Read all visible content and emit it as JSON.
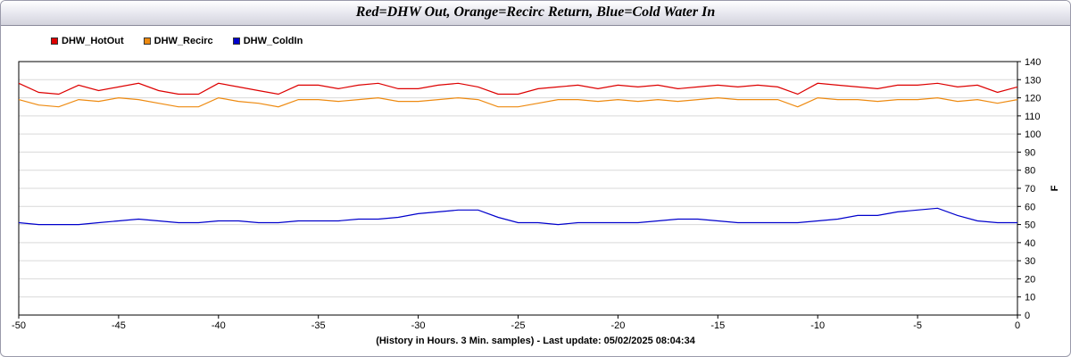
{
  "title": "Red=DHW Out, Orange=Recirc Return, Blue=Cold Water In",
  "footer": "(History in Hours. 3 Min. samples) - Last update: 05/02/2025 08:04:34",
  "colors": {
    "hotout": "#dd0000",
    "recirc": "#ee8a10",
    "coldin": "#0000cc"
  },
  "chart_data": {
    "type": "line",
    "title": "Red=DHW Out, Orange=Recirc Return, Blue=Cold Water In",
    "xlabel": "(History in Hours. 3 Min. samples) - Last update: 05/02/2025 08:04:34",
    "ylabel": "F",
    "xlim": [
      -50,
      0
    ],
    "ylim": [
      0,
      140
    ],
    "xticks": [
      -50,
      -45,
      -40,
      -35,
      -30,
      -25,
      -20,
      -15,
      -10,
      -5,
      0
    ],
    "yticks": [
      0,
      10,
      20,
      30,
      40,
      50,
      60,
      70,
      80,
      90,
      100,
      110,
      120,
      130,
      140
    ],
    "grid": true,
    "legend_position": "top-left",
    "x": [
      -50,
      -49,
      -48,
      -47,
      -46,
      -45,
      -44,
      -43,
      -42,
      -41,
      -40,
      -39,
      -38,
      -37,
      -36,
      -35,
      -34,
      -33,
      -32,
      -31,
      -30,
      -29,
      -28,
      -27,
      -26,
      -25,
      -24,
      -23,
      -22,
      -21,
      -20,
      -19,
      -18,
      -17,
      -16,
      -15,
      -14,
      -13,
      -12,
      -11,
      -10,
      -9,
      -8,
      -7,
      -6,
      -5,
      -4,
      -3,
      -2,
      -1,
      0
    ],
    "series": [
      {
        "name": "DHW_HotOut",
        "color": "#dd0000",
        "values": [
          128,
          123,
          122,
          127,
          124,
          126,
          128,
          124,
          122,
          122,
          128,
          126,
          124,
          122,
          127,
          127,
          125,
          127,
          128,
          125,
          125,
          127,
          128,
          126,
          122,
          122,
          125,
          126,
          127,
          125,
          127,
          126,
          127,
          125,
          126,
          127,
          126,
          127,
          126,
          122,
          128,
          127,
          126,
          125,
          127,
          127,
          128,
          126,
          127,
          123,
          126
        ]
      },
      {
        "name": "DHW_Recirc",
        "color": "#ee8a10",
        "values": [
          119,
          116,
          115,
          119,
          118,
          120,
          119,
          117,
          115,
          115,
          120,
          118,
          117,
          115,
          119,
          119,
          118,
          119,
          120,
          118,
          118,
          119,
          120,
          119,
          115,
          115,
          117,
          119,
          119,
          118,
          119,
          118,
          119,
          118,
          119,
          120,
          119,
          119,
          119,
          115,
          120,
          119,
          119,
          118,
          119,
          119,
          120,
          118,
          119,
          117,
          119
        ]
      },
      {
        "name": "DHW_ColdIn",
        "color": "#0000cc",
        "values": [
          51,
          50,
          50,
          50,
          51,
          52,
          53,
          52,
          51,
          51,
          52,
          52,
          51,
          51,
          52,
          52,
          52,
          53,
          53,
          54,
          56,
          57,
          58,
          58,
          54,
          51,
          51,
          50,
          51,
          51,
          51,
          51,
          52,
          53,
          53,
          52,
          51,
          51,
          51,
          51,
          52,
          53,
          55,
          55,
          57,
          58,
          59,
          55,
          52,
          51,
          51
        ]
      }
    ]
  }
}
